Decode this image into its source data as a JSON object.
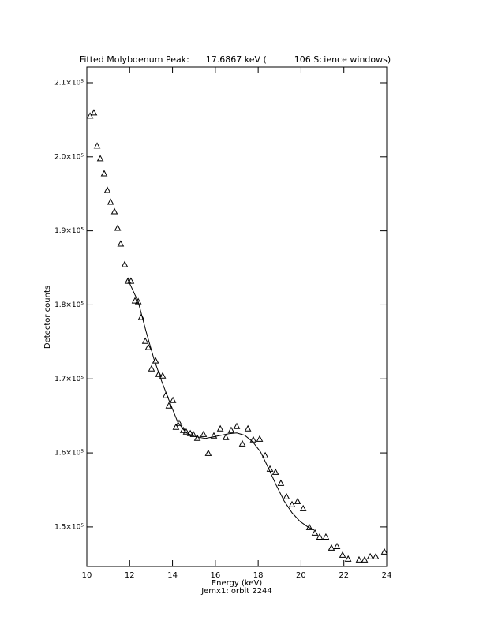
{
  "chart_data": {
    "type": "scatter",
    "title": "Fitted Molybdenum Peak:      17.6867 keV (          106 Science windows)",
    "xlabel": "Energy (keV)",
    "ylabel": "Detector counts",
    "subtitle": "Jemx1: orbit 2244",
    "xlim": [
      10,
      24
    ],
    "xticks": [
      10,
      12,
      14,
      16,
      18,
      20,
      22,
      24
    ],
    "ylim": [
      144660,
      212130
    ],
    "yticks": [
      {
        "value": 150000,
        "label": "1.5×10⁵"
      },
      {
        "value": 160000,
        "label": "1.6×10⁵"
      },
      {
        "value": 170000,
        "label": "1.7×10⁵"
      },
      {
        "value": 180000,
        "label": "1.8×10⁵"
      },
      {
        "value": 190000,
        "label": "1.9×10⁵"
      },
      {
        "value": 200000,
        "label": "2.0×10⁵"
      },
      {
        "value": 210000,
        "label": "2.1×10⁵"
      }
    ],
    "series": [
      {
        "type": "scatter",
        "color": "#000000",
        "x": [
          10.15,
          10.33,
          10.48,
          10.63,
          10.81,
          10.96,
          11.11,
          11.29,
          11.44,
          11.58,
          11.77,
          11.92,
          12.06,
          12.25,
          12.4,
          12.54,
          12.73,
          12.87,
          13.02,
          13.21,
          13.35,
          13.54,
          13.68,
          13.83,
          14.02,
          14.16,
          14.31,
          14.5,
          14.64,
          14.83,
          14.97,
          15.16,
          15.45,
          15.67,
          15.93,
          16.23,
          16.49,
          16.74,
          17.0,
          17.26,
          17.52,
          17.77,
          18.07,
          18.33,
          18.55,
          18.81,
          19.06,
          19.32,
          19.58,
          19.84,
          20.1,
          20.39,
          20.65,
          20.87,
          21.16,
          21.42,
          21.68,
          21.94,
          22.2,
          22.71,
          22.97,
          23.23,
          23.49,
          23.89
        ],
        "values": [
          205480,
          205910,
          201430,
          199720,
          197690,
          195450,
          193850,
          192570,
          190330,
          188200,
          185420,
          183180,
          183180,
          180520,
          180410,
          178280,
          175070,
          174220,
          171340,
          172410,
          170590,
          170380,
          167710,
          166330,
          167070,
          163440,
          163980,
          163020,
          162800,
          162590,
          162480,
          161950,
          162480,
          159920,
          162270,
          163230,
          162060,
          163020,
          163550,
          161200,
          163230,
          161740,
          161840,
          159600,
          157790,
          157360,
          155870,
          154050,
          152990,
          153410,
          152450,
          149890,
          149150,
          148610,
          148610,
          147120,
          147330,
          146160,
          145630,
          145520,
          145520,
          145950,
          145950,
          146590
        ]
      },
      {
        "type": "line",
        "color": "#000000",
        "x": [
          11.92,
          12.4,
          12.76,
          13.13,
          13.5,
          13.87,
          14.24,
          14.61,
          14.97,
          15.53,
          16.08,
          16.63,
          17.0,
          17.37,
          17.74,
          18.11,
          18.47,
          18.84,
          19.21,
          19.58,
          19.95,
          20.32,
          20.61
        ],
        "values": [
          183400,
          180410,
          176460,
          172730,
          169630,
          166860,
          164190,
          162800,
          162270,
          161950,
          162270,
          162590,
          162700,
          162380,
          161520,
          160140,
          158000,
          155660,
          153520,
          151920,
          150750,
          150000,
          149570
        ]
      }
    ]
  }
}
